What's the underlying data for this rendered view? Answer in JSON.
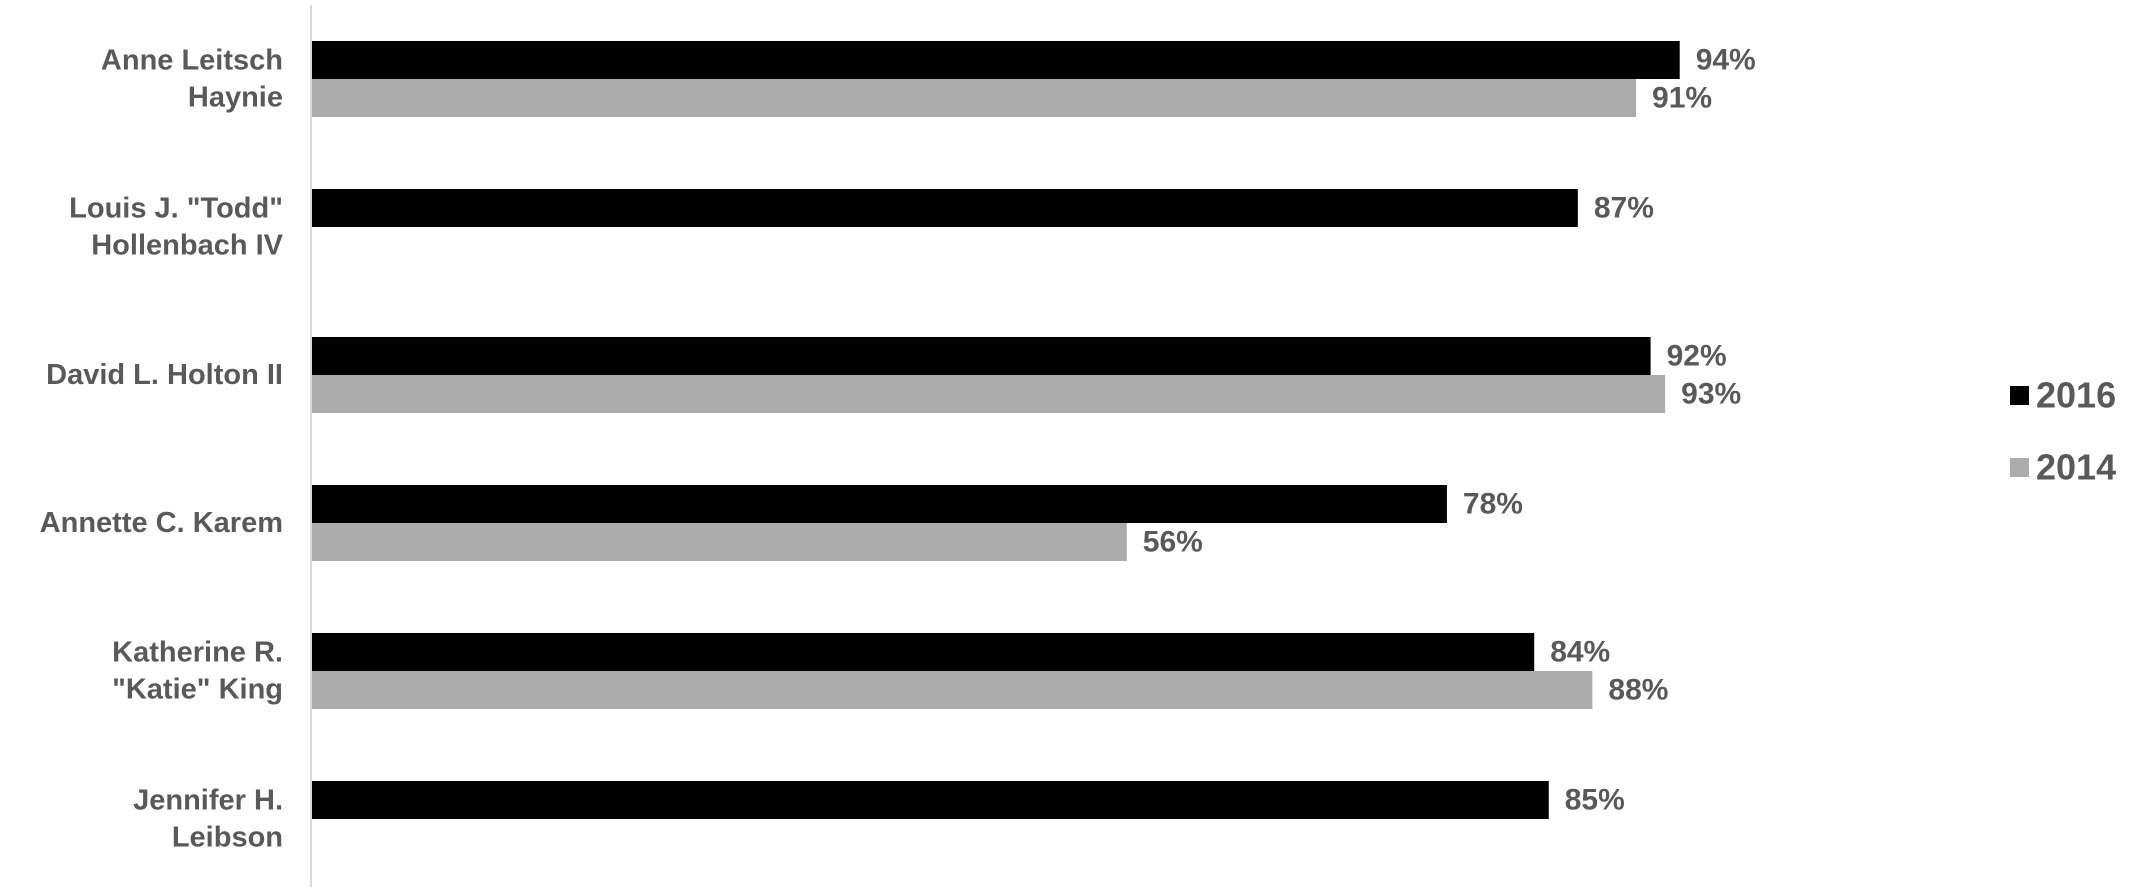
{
  "chart_data": {
    "type": "bar",
    "orientation": "horizontal",
    "categories": [
      [
        "Anne Leitsch",
        "Haynie"
      ],
      [
        "Louis J. \"Todd\"",
        "Hollenbach IV"
      ],
      [
        "David L. Holton II"
      ],
      [
        "Annette C. Karem"
      ],
      [
        "Katherine R.",
        "\"Katie\" King"
      ],
      [
        "Jennifer H.",
        "Leibson"
      ]
    ],
    "series": [
      {
        "name": "2016",
        "color": "#000000",
        "values": [
          94,
          87,
          92,
          78,
          84,
          85
        ],
        "labels": [
          "94%",
          "87%",
          "92%",
          "78%",
          "84%",
          "85%"
        ]
      },
      {
        "name": "2014",
        "color": "#ababab",
        "values": [
          91,
          null,
          93,
          56,
          88,
          null
        ],
        "labels": [
          "91%",
          null,
          "93%",
          "56%",
          "88%",
          null
        ]
      }
    ],
    "xlim": [
      0,
      100
    ],
    "grid": false,
    "legend": "right"
  }
}
